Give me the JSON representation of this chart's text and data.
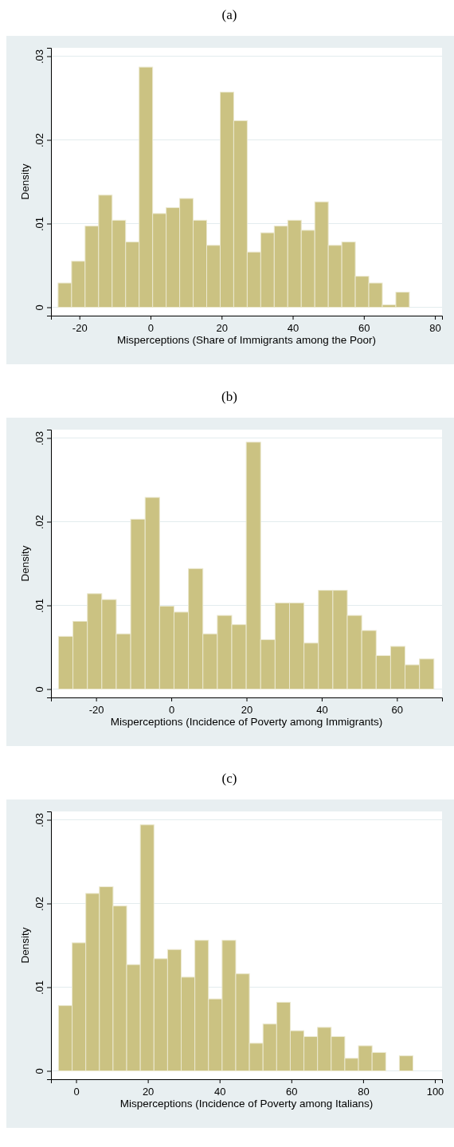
{
  "chart_data": [
    {
      "type": "histogram",
      "title": "(a)",
      "xlabel": "Misperceptions (Share of Immigrants among the Poor)",
      "ylabel": "Density",
      "color": "#cbc282",
      "grid": "y",
      "bins": [
        -26,
        -22.2,
        -18.4,
        -14.6,
        -10.8,
        -7,
        -3.2,
        0.6,
        4.4,
        8.2,
        12,
        15.8,
        19.6,
        23.4,
        27.2,
        31,
        34.8,
        38.6,
        42.4,
        46.2,
        50,
        53.8,
        57.6,
        61.4,
        65.2,
        69,
        72.8
      ],
      "values": [
        0.0029,
        0.0055,
        0.0097,
        0.0134,
        0.0104,
        0.0078,
        0.0287,
        0.0112,
        0.0119,
        0.013,
        0.0104,
        0.0074,
        0.0257,
        0.0223,
        0.0066,
        0.0089,
        0.0097,
        0.0104,
        0.0092,
        0.0126,
        0.0074,
        0.0078,
        0.0037,
        0.0029,
        0.0003,
        0.0018
      ],
      "xlim": [
        -28,
        82
      ],
      "xticks": [
        -20,
        0,
        20,
        40,
        60,
        80
      ],
      "ylim": [
        -0.001,
        0.031
      ],
      "yticks": [
        {
          "value": 0,
          "label": "0"
        },
        {
          "value": 0.01,
          "label": ".01"
        },
        {
          "value": 0.02,
          "label": ".02"
        },
        {
          "value": 0.03,
          "label": ".03"
        }
      ]
    },
    {
      "type": "histogram",
      "title": "(b)",
      "xlabel": "Misperceptions (Incidence of Poverty among Immigrants)",
      "ylabel": "Density",
      "color": "#cbc282",
      "grid": "y",
      "bins": [
        -30,
        -26.16,
        -22.32,
        -18.48,
        -14.64,
        -10.8,
        -6.96,
        -3.12,
        0.72,
        4.56,
        8.4,
        12.24,
        16.08,
        19.92,
        23.76,
        27.6,
        31.44,
        35.28,
        39.12,
        42.96,
        46.8,
        50.64,
        54.48,
        58.32,
        62.16,
        66,
        69.84
      ],
      "values": [
        0.0063,
        0.0081,
        0.0114,
        0.0107,
        0.0066,
        0.0203,
        0.0229,
        0.0099,
        0.0092,
        0.0144,
        0.0066,
        0.0088,
        0.0077,
        0.0295,
        0.0059,
        0.0103,
        0.0103,
        0.0055,
        0.0118,
        0.0118,
        0.0088,
        0.007,
        0.004,
        0.0051,
        0.0029,
        0.0036
      ],
      "xlim": [
        -32,
        72
      ],
      "xticks": [
        -20,
        0,
        20,
        40,
        60
      ],
      "ylim": [
        -0.001,
        0.031
      ],
      "yticks": [
        {
          "value": 0,
          "label": "0"
        },
        {
          "value": 0.01,
          "label": ".01"
        },
        {
          "value": 0.02,
          "label": ".02"
        },
        {
          "value": 0.03,
          "label": ".03"
        }
      ]
    },
    {
      "type": "histogram",
      "title": "(c)",
      "xlabel": "Misperceptions (Incidence of Poverty among Italians)",
      "ylabel": "Density",
      "color": "#cbc282",
      "grid": "y",
      "bins": [
        -4.9,
        -1.1,
        2.7,
        6.5,
        10.3,
        14.1,
        17.9,
        21.7,
        25.5,
        29.3,
        33.1,
        36.9,
        40.7,
        44.5,
        48.3,
        52.1,
        55.9,
        59.7,
        63.5,
        67.3,
        71.1,
        74.9,
        78.7,
        82.5,
        86.3,
        90.1,
        93.9
      ],
      "values": [
        0.0078,
        0.0153,
        0.0212,
        0.022,
        0.0197,
        0.0127,
        0.0294,
        0.0134,
        0.0145,
        0.0112,
        0.0156,
        0.0086,
        0.0156,
        0.0116,
        0.0033,
        0.0056,
        0.0082,
        0.0048,
        0.0041,
        0.0052,
        0.0041,
        0.0015,
        0.003,
        0.0022,
        0,
        0.0018
      ],
      "xlim": [
        -7,
        102
      ],
      "xticks": [
        0,
        20,
        40,
        60,
        80,
        100
      ],
      "ylim": [
        -0.001,
        0.031
      ],
      "yticks": [
        {
          "value": 0,
          "label": "0"
        },
        {
          "value": 0.01,
          "label": ".01"
        },
        {
          "value": 0.02,
          "label": ".02"
        },
        {
          "value": 0.03,
          "label": ".03"
        }
      ]
    }
  ]
}
